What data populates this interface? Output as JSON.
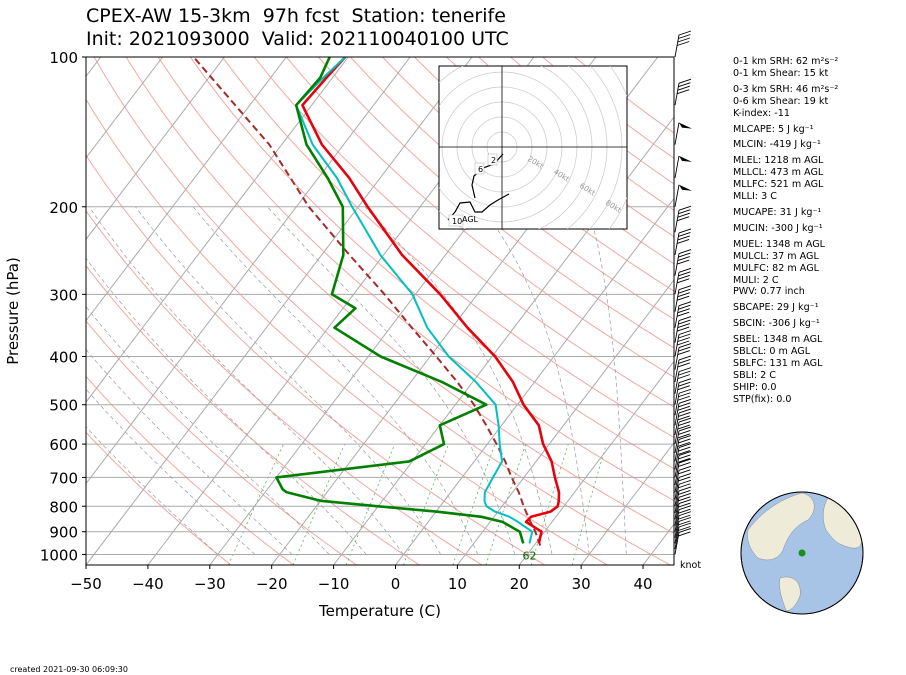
{
  "header": {
    "title_line1": "CPEX-AW 15-3km  97h fcst  Station: tenerife",
    "title_line2": "Init: 2021093000  Valid: 202110040100 UTC"
  },
  "footer": {
    "created": "created 2021-09-30 06:09:30"
  },
  "wind_units": "knot",
  "indices": [
    {
      "text": "0-1 km SRH: 62 m²s⁻²",
      "gap": false
    },
    {
      "text": "0-1 km Shear: 15 kt",
      "gap": false
    },
    {
      "text": "0-3 km SRH: 46 m²s⁻²",
      "gap": true
    },
    {
      "text": "0-6 km Shear: 19 kt",
      "gap": false
    },
    {
      "text": "K-index: -11",
      "gap": false
    },
    {
      "text": "MLCAPE: 5 J kg⁻¹",
      "gap": true
    },
    {
      "text": "MLCIN: -419 J kg⁻¹",
      "gap": true
    },
    {
      "text": "MLEL: 1218 m AGL",
      "gap": true
    },
    {
      "text": "MLLCL: 473 m AGL",
      "gap": false
    },
    {
      "text": "MLLFC: 521 m AGL",
      "gap": false
    },
    {
      "text": "MLLI: 3 C",
      "gap": false
    },
    {
      "text": "MUCAPE: 31 J kg⁻¹",
      "gap": true
    },
    {
      "text": "MUCIN: -300 J kg⁻¹",
      "gap": true
    },
    {
      "text": "MUEL: 1348 m AGL",
      "gap": true
    },
    {
      "text": "MULCL: 37 m AGL",
      "gap": false
    },
    {
      "text": "MULFC: 82 m AGL",
      "gap": false
    },
    {
      "text": "MULI: 2 C",
      "gap": false
    },
    {
      "text": "PWV: 0.77 inch",
      "gap": false
    },
    {
      "text": "SBCAPE: 29 J kg⁻¹",
      "gap": true
    },
    {
      "text": "SBCIN: -306 J kg⁻¹",
      "gap": true
    },
    {
      "text": "SBEL: 1348 m AGL",
      "gap": true
    },
    {
      "text": "SBLCL: 0 m AGL",
      "gap": false
    },
    {
      "text": "SBLFC: 131 m AGL",
      "gap": false
    },
    {
      "text": "SBLI: 2 C",
      "gap": false
    },
    {
      "text": "SHIP: 0.0",
      "gap": false
    },
    {
      "text": "STP(fix): 0.0",
      "gap": false
    }
  ],
  "chart_data": {
    "type": "line",
    "subtype": "skew-T log-p",
    "xlabel": "Temperature (C)",
    "ylabel": "Pressure (hPa)",
    "xlim": [
      -50,
      45
    ],
    "ylim": [
      1050,
      100
    ],
    "yscale": "log",
    "x_ticks": [
      -50,
      -40,
      -30,
      -20,
      -10,
      0,
      10,
      20,
      30,
      40
    ],
    "y_ticks": [
      100,
      200,
      300,
      400,
      500,
      600,
      700,
      800,
      900,
      1000
    ],
    "colors": {
      "temperature": "#e8000b",
      "dewpoint": "#008000",
      "virtual": "#00c0c0",
      "parcel": "#a52a2a"
    },
    "series": [
      {
        "id": "temperature",
        "pressure": [
          950,
          900,
          860,
          840,
          820,
          800,
          780,
          750,
          700,
          650,
          600,
          550,
          500,
          450,
          400,
          350,
          300,
          250,
          200,
          175,
          150,
          125,
          110,
          100
        ],
        "values": [
          20.5,
          19.5,
          15.8,
          16.0,
          18.5,
          19.0,
          18.5,
          17.5,
          15.0,
          12.5,
          9.0,
          6.0,
          1.0,
          -3.5,
          -9.5,
          -17.5,
          -26.0,
          -37.0,
          -48.5,
          -55.0,
          -63.5,
          -71.5,
          -71.0,
          -70.5
        ]
      },
      {
        "id": "virtual",
        "pressure": [
          950,
          900,
          860,
          840,
          820,
          800,
          780,
          750,
          700,
          650,
          600,
          550,
          500,
          450,
          400,
          350,
          300,
          250,
          200,
          175,
          150,
          125,
          110,
          100
        ],
        "values": [
          19.0,
          18.0,
          14.5,
          12.5,
          9.5,
          7.5,
          6.5,
          5.5,
          5.0,
          4.5,
          2.0,
          -0.5,
          -3.5,
          -9.5,
          -17.0,
          -24.0,
          -30.5,
          -40.5,
          -51.0,
          -57.0,
          -65.0,
          -72.5,
          -71.5,
          -70.5
        ]
      },
      {
        "id": "dewpoint",
        "pressure": [
          950,
          900,
          860,
          840,
          820,
          800,
          780,
          750,
          740,
          700,
          650,
          600,
          550,
          500,
          450,
          400,
          350,
          320,
          300,
          250,
          200,
          175,
          150,
          125,
          110,
          100
        ],
        "values": [
          18.0,
          16.0,
          12.0,
          8.0,
          0.0,
          -10.0,
          -20.0,
          -26.5,
          -27.5,
          -30.0,
          -10.5,
          -7.0,
          -10.0,
          -5.0,
          -15.0,
          -28.0,
          -39.0,
          -38.0,
          -43.5,
          -46.5,
          -52.5,
          -58.5,
          -66.0,
          -72.5,
          -72.0,
          -73.0
        ]
      },
      {
        "id": "parcel",
        "pressure": [
          960,
          900,
          850,
          800,
          750,
          700,
          650,
          600,
          550,
          500,
          450,
          400,
          350,
          300,
          250,
          200,
          150,
          100
        ],
        "values": [
          21.0,
          18.5,
          16.0,
          13.5,
          11.0,
          8.0,
          5.0,
          1.5,
          -2.5,
          -7.0,
          -12.5,
          -19.0,
          -26.5,
          -35.0,
          -45.5,
          -58.0,
          -72.0,
          -95.0
        ]
      }
    ],
    "annotations": [
      {
        "text": "62",
        "temperature": 19,
        "pressure": 950
      }
    ],
    "hodograph": {
      "ring_labels": [
        "20kt",
        "40kt",
        "60kt",
        "80kt"
      ],
      "height_labels": [
        "2",
        "6",
        "10"
      ],
      "agl_label": "AGL"
    }
  }
}
